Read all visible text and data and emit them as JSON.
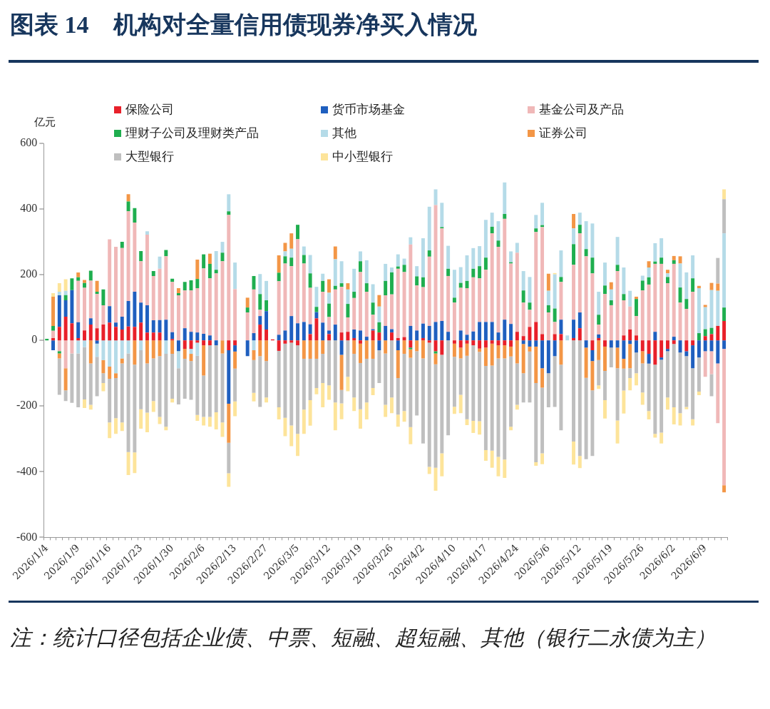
{
  "chart_data": {
    "type": "bar",
    "title": "图表 14　机构对全量信用债现券净买入情况",
    "ylabel": "亿元",
    "stacked": true,
    "legend": "top",
    "grid": false,
    "categories": [
      "2026/1/4",
      null,
      null,
      null,
      null,
      "2026/1/9",
      null,
      null,
      null,
      null,
      "2026/1/16",
      null,
      null,
      null,
      null,
      "2026/1/23",
      null,
      null,
      null,
      null,
      "2026/1/30",
      null,
      null,
      null,
      null,
      "2026/2/6",
      null,
      null,
      null,
      null,
      "2026/2/13",
      null,
      null,
      null,
      null,
      "2026/2/27",
      null,
      null,
      null,
      null,
      "2026/3/5",
      null,
      null,
      null,
      null,
      "2026/3/12",
      null,
      null,
      null,
      null,
      "2026/3/19",
      null,
      null,
      null,
      null,
      "2026/3/26",
      null,
      null,
      null,
      null,
      "2026/4/2",
      null,
      null,
      null,
      null,
      "2026/4/10",
      null,
      null,
      null,
      null,
      "2026/4/17",
      null,
      null,
      null,
      null,
      "2026/4/24",
      null,
      null,
      null,
      null,
      "2026/5/6",
      null,
      null,
      null,
      null,
      "2026/5/12",
      null,
      null,
      null,
      null,
      "2026/5/19",
      null,
      null,
      null,
      null,
      "2026/5/26",
      null,
      null,
      null,
      null,
      "2026/6/2",
      null,
      null,
      null,
      null,
      "2026/6/9",
      null,
      null,
      null
    ],
    "ylim": [
      -600,
      600
    ],
    "yticks": [
      -600,
      -400,
      -200,
      0,
      200,
      400,
      600
    ],
    "series": [
      {
        "name": "保险公司",
        "color": "#e8202a",
        "values": [
          0,
          7,
          41,
          72,
          52,
          7,
          30,
          48,
          37,
          48,
          54,
          41,
          33,
          42,
          41,
          54,
          24,
          24,
          24,
          0,
          4,
          0,
          -26,
          -26,
          -7,
          -15,
          -15,
          0,
          0,
          -30,
          -15,
          0,
          0,
          0,
          48,
          33,
          3,
          -32,
          -10,
          -7,
          -15,
          0,
          19,
          67,
          0,
          19,
          0,
          24,
          26,
          7,
          -10,
          0,
          30,
          24,
          0,
          24,
          7,
          10,
          -22,
          0,
          7,
          -7,
          -33,
          -44,
          0,
          -10,
          -22,
          -10,
          -15,
          -25,
          -22,
          -10,
          -15,
          -15,
          -19,
          26,
          13,
          41,
          56,
          19,
          0,
          19,
          19,
          0,
          7,
          37,
          0,
          -30,
          7,
          -19,
          0,
          0,
          15,
          33,
          15,
          -33,
          -41,
          -74,
          -52,
          -26,
          -11,
          0,
          -33,
          -15,
          0,
          13,
          19,
          44,
          59
        ]
      },
      {
        "name": "货币市场基金",
        "color": "#1f5fbf",
        "values": [
          0,
          -30,
          96,
          50,
          101,
          48,
          0,
          19,
          -10,
          0,
          50,
          13,
          39,
          78,
          107,
          61,
          83,
          37,
          38,
          63,
          21,
          -33,
          37,
          26,
          24,
          20,
          15,
          -15,
          0,
          -163,
          -19,
          0,
          -48,
          22,
          26,
          56,
          0,
          17,
          30,
          74,
          52,
          56,
          30,
          19,
          54,
          11,
          48,
          -44,
          0,
          26,
          30,
          11,
          4,
          -30,
          44,
          10,
          -30,
          0,
          44,
          30,
          44,
          44,
          56,
          59,
          26,
          0,
          30,
          17,
          27,
          56,
          56,
          56,
          24,
          63,
          50,
          0,
          -11,
          -19,
          -19,
          -85,
          -100,
          -48,
          44,
          0,
          56,
          48,
          -22,
          -33,
          11,
          0,
          -22,
          -22,
          -56,
          -11,
          -37,
          0,
          -30,
          26,
          -7,
          -7,
          11,
          -37,
          -15,
          -70,
          -52,
          -33,
          -33,
          -70,
          -26
        ]
      },
      {
        "name": "基金公司及产品",
        "color": "#f0b8b8",
        "values": [
          0,
          22,
          -33,
          -85,
          -40,
          126,
          130,
          115,
          104,
          59,
          204,
          231,
          209,
          273,
          211,
          126,
          215,
          135,
          156,
          193,
          153,
          137,
          115,
          126,
          135,
          199,
          174,
          204,
          241,
          382,
          156,
          0,
          85,
          133,
          19,
          0,
          0,
          163,
          204,
          152,
          256,
          178,
          111,
          0,
          94,
          41,
          107,
          139,
          44,
          96,
          178,
          137,
          44,
          0,
          93,
          106,
          211,
          198,
          248,
          137,
          111,
          211,
          356,
          282,
          170,
          115,
          130,
          142,
          165,
          133,
          159,
          270,
          261,
          307,
          184,
          241,
          102,
          52,
          274,
          326,
          85,
          37,
          115,
          0,
          167,
          241,
          256,
          204,
          30,
          141,
          107,
          211,
          107,
          70,
          59,
          152,
          170,
          207,
          233,
          174,
          222,
          115,
          96,
          148,
          0,
          -78,
          -70,
          -182,
          -415
        ]
      },
      {
        "name": "理财子公司及理财类产品",
        "color": "#1fae4f",
        "values": [
          5,
          15,
          -7,
          16,
          36,
          11,
          15,
          30,
          7,
          48,
          0,
          0,
          19,
          30,
          44,
          31,
          0,
          15,
          0,
          19,
          10,
          7,
          26,
          31,
          28,
          43,
          44,
          11,
          26,
          11,
          0,
          0,
          15,
          41,
          48,
          33,
          0,
          26,
          22,
          26,
          44,
          26,
          44,
          16,
          33,
          41,
          11,
          11,
          41,
          19,
          33,
          26,
          37,
          31,
          44,
          67,
          7,
          22,
          -5,
          28,
          30,
          19,
          -7,
          4,
          22,
          15,
          15,
          22,
          26,
          37,
          37,
          20,
          19,
          15,
          4,
          0,
          37,
          22,
          11,
          6,
          22,
          41,
          15,
          0,
          63,
          26,
          22,
          48,
          30,
          26,
          15,
          19,
          19,
          0,
          52,
          30,
          22,
          7,
          19,
          19,
          11,
          46,
          30,
          41,
          22,
          21,
          19,
          0,
          41
        ]
      },
      {
        "name": "其他",
        "color": "#b5dbe8",
        "values": [
          0,
          0,
          11,
          13,
          0,
          -40,
          -20,
          0,
          -40,
          -60,
          -80,
          -100,
          -55,
          -40,
          0,
          -30,
          10,
          0,
          37,
          -41,
          0,
          -52,
          0,
          -15,
          -40,
          0,
          0,
          57,
          33,
          52,
          81,
          0,
          0,
          -30,
          61,
          59,
          0,
          0,
          15,
          27,
          0,
          26,
          56,
          61,
          22,
          33,
          81,
          67,
          44,
          70,
          30,
          70,
          56,
          48,
          52,
          15,
          37,
          19,
          22,
          31,
          119,
          133,
          48,
          74,
          70,
          85,
          48,
          78,
          63,
          61,
          115,
          43,
          59,
          96,
          33,
          30,
          59,
          78,
          41,
          68,
          44,
          104,
          81,
          15,
          48,
          37,
          85,
          104,
          70,
          70,
          33,
          85,
          81,
          48,
          0,
          15,
          30,
          56,
          59,
          11,
          0,
          73,
          81,
          70,
          137,
          67,
          115,
          107,
          226
        ]
      },
      {
        "name": "证券公司",
        "color": "#f39646",
        "values": [
          0,
          89,
          -15,
          -67,
          0,
          15,
          9,
          -70,
          33,
          -40,
          -37,
          -15,
          -15,
          22,
          -74,
          0,
          -70,
          -55,
          -48,
          0,
          -41,
          15,
          -30,
          -22,
          59,
          -92,
          31,
          0,
          -40,
          -119,
          -52,
          0,
          30,
          -30,
          -48,
          -63,
          0,
          53,
          26,
          47,
          0,
          -56,
          -56,
          -56,
          -41,
          41,
          39,
          -107,
          19,
          -41,
          -59,
          -56,
          -56,
          35,
          -40,
          0,
          -85,
          -41,
          -26,
          -33,
          -55,
          0,
          -33,
          0,
          0,
          -40,
          -33,
          -37,
          0,
          -10,
          -56,
          -67,
          -40,
          -40,
          -30,
          -70,
          -89,
          -15,
          -111,
          -59,
          52,
          0,
          -74,
          0,
          44,
          0,
          -92,
          -89,
          -60,
          -74,
          22,
          -63,
          -30,
          -74,
          7,
          -37,
          19,
          0,
          0,
          11,
          13,
          22,
          0,
          0,
          7,
          7,
          22,
          22,
          -22
        ]
      },
      {
        "name": "大型银行",
        "color": "#bfbfbf",
        "values": [
          0,
          0,
          -111,
          -33,
          -150,
          -164,
          -160,
          -126,
          -120,
          -30,
          -133,
          -122,
          -180,
          -300,
          -267,
          -180,
          -150,
          -130,
          -185,
          -222,
          -137,
          -110,
          -122,
          -118,
          -180,
          -126,
          -218,
          -204,
          -210,
          -93,
          -100,
          0,
          0,
          -100,
          -155,
          -111,
          0,
          -172,
          -226,
          -252,
          -270,
          -155,
          -126,
          -89,
          -89,
          -137,
          -189,
          -41,
          -111,
          -133,
          -141,
          -133,
          -89,
          -100,
          -156,
          -174,
          -111,
          -174,
          -211,
          -196,
          -259,
          -378,
          -315,
          -300,
          -289,
          -152,
          -111,
          -193,
          -230,
          -211,
          -256,
          -259,
          -300,
          -308,
          -214,
          -126,
          -89,
          -155,
          -241,
          -200,
          -104,
          -155,
          -200,
          0,
          -308,
          -352,
          -248,
          -200,
          -77,
          -89,
          -60,
          -159,
          -67,
          -30,
          -63,
          -89,
          -144,
          -211,
          -222,
          -141,
          -193,
          -185,
          -155,
          -155,
          -104,
          0,
          -67,
          78,
          104
        ]
      },
      {
        "name": "中小型银行",
        "color": "#fde49a",
        "values": [
          0,
          11,
          26,
          35,
          0,
          0,
          -26,
          -15,
          0,
          -25,
          -48,
          -48,
          -26,
          -70,
          -63,
          -59,
          -60,
          -33,
          -22,
          -11,
          -11,
          0,
          0,
          0,
          -18,
          -26,
          -30,
          -52,
          -44,
          -41,
          -45,
          0,
          0,
          -26,
          0,
          -15,
          0,
          -37,
          -56,
          -63,
          -67,
          -74,
          -78,
          -19,
          -74,
          -44,
          -85,
          -48,
          -44,
          -41,
          -59,
          -52,
          -22,
          0,
          -37,
          -48,
          -37,
          -33,
          -52,
          0,
          0,
          -22,
          -70,
          -70,
          0,
          -22,
          -56,
          -18,
          -37,
          -41,
          -33,
          -52,
          -59,
          -56,
          -11,
          -15,
          0,
          0,
          -11,
          -33,
          0,
          4,
          0,
          0,
          -70,
          -37,
          0,
          0,
          -11,
          -56,
          0,
          -70,
          -70,
          -37,
          -37,
          -37,
          -26,
          -11,
          -33,
          -37,
          -52,
          -37,
          -7,
          -19,
          -11,
          0,
          0,
          0,
          30
        ]
      }
    ],
    "annotations": [
      "注：统计口径包括企业债、中票、短融、超短融、其他（银行二永债为主）"
    ]
  }
}
